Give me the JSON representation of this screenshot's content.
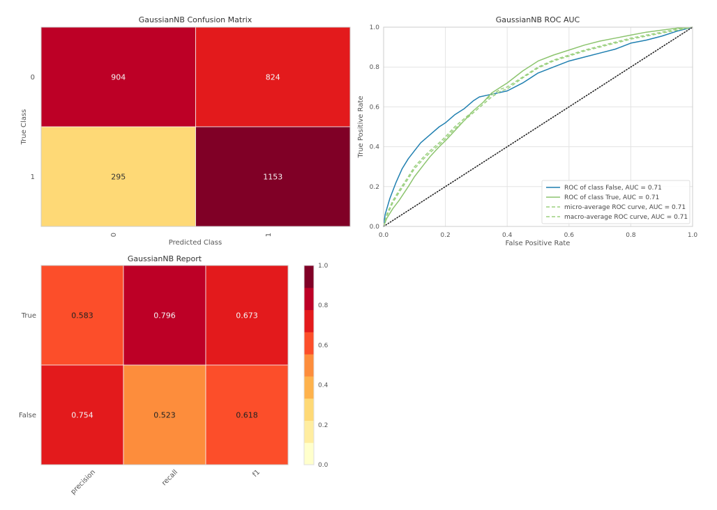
{
  "chart_data": [
    {
      "type": "heatmap",
      "id": "confusion",
      "title": "GaussianNB Confusion Matrix",
      "xlabel": "Predicted Class",
      "ylabel": "True Class",
      "x_categories": [
        "0",
        "1"
      ],
      "y_categories": [
        "0",
        "1"
      ],
      "values": [
        [
          904,
          824
        ],
        [
          295,
          1153
        ]
      ],
      "cell_colors": [
        [
          "#bd0026",
          "#e31a1c"
        ],
        [
          "#fed976",
          "#800026"
        ]
      ],
      "text_colors": [
        [
          "#f5f5f5",
          "#f5f5f5"
        ],
        [
          "#333333",
          "#f5f5f5"
        ]
      ]
    },
    {
      "type": "line",
      "id": "roc",
      "title": "GaussianNB ROC AUC",
      "xlabel": "False Positive Rate",
      "ylabel": "True Positive Rate",
      "xlim": [
        0,
        1
      ],
      "ylim": [
        0,
        1
      ],
      "xticks": [
        "0.0",
        "0.2",
        "0.4",
        "0.6",
        "0.8",
        "1.0"
      ],
      "yticks": [
        "0.0",
        "0.2",
        "0.4",
        "0.6",
        "0.8",
        "1.0"
      ],
      "grid": true,
      "legend_position": "bottom-right",
      "series": [
        {
          "name": "ROC of class False, AUC = 0.71",
          "color": "#1f7fb0",
          "style": "solid",
          "x": [
            0,
            0.005,
            0.02,
            0.04,
            0.06,
            0.08,
            0.1,
            0.12,
            0.15,
            0.18,
            0.2,
            0.23,
            0.26,
            0.29,
            0.31,
            0.34,
            0.37,
            0.4,
            0.45,
            0.5,
            0.55,
            0.6,
            0.65,
            0.7,
            0.75,
            0.8,
            0.85,
            0.9,
            0.95,
            1.0
          ],
          "y": [
            0,
            0.06,
            0.14,
            0.22,
            0.29,
            0.34,
            0.38,
            0.42,
            0.46,
            0.5,
            0.52,
            0.56,
            0.59,
            0.63,
            0.65,
            0.66,
            0.67,
            0.68,
            0.72,
            0.77,
            0.8,
            0.83,
            0.85,
            0.87,
            0.89,
            0.92,
            0.935,
            0.955,
            0.98,
            1.0
          ]
        },
        {
          "name": "ROC of class True, AUC = 0.71",
          "color": "#8cc46e",
          "style": "solid",
          "x": [
            0,
            0.01,
            0.03,
            0.05,
            0.08,
            0.1,
            0.13,
            0.15,
            0.18,
            0.2,
            0.23,
            0.26,
            0.29,
            0.32,
            0.35,
            0.38,
            0.4,
            0.45,
            0.5,
            0.55,
            0.6,
            0.65,
            0.7,
            0.75,
            0.8,
            0.85,
            0.9,
            0.95,
            1.0
          ],
          "y": [
            0,
            0.04,
            0.09,
            0.13,
            0.2,
            0.25,
            0.31,
            0.35,
            0.4,
            0.43,
            0.48,
            0.53,
            0.58,
            0.62,
            0.67,
            0.7,
            0.72,
            0.78,
            0.83,
            0.86,
            0.885,
            0.91,
            0.93,
            0.945,
            0.96,
            0.975,
            0.985,
            0.995,
            1.0
          ]
        },
        {
          "name": "micro-average ROC curve, AUC = 0.71",
          "color": "#9bd07f",
          "style": "dashed",
          "x": [
            0,
            0.01,
            0.03,
            0.05,
            0.08,
            0.1,
            0.13,
            0.15,
            0.18,
            0.2,
            0.23,
            0.26,
            0.29,
            0.32,
            0.35,
            0.38,
            0.4,
            0.45,
            0.5,
            0.55,
            0.6,
            0.65,
            0.7,
            0.75,
            0.8,
            0.85,
            0.9,
            0.95,
            1.0
          ],
          "y": [
            0,
            0.06,
            0.13,
            0.18,
            0.25,
            0.3,
            0.35,
            0.38,
            0.42,
            0.45,
            0.5,
            0.54,
            0.58,
            0.62,
            0.66,
            0.69,
            0.7,
            0.75,
            0.8,
            0.835,
            0.86,
            0.885,
            0.905,
            0.925,
            0.945,
            0.96,
            0.975,
            0.99,
            1.0
          ]
        },
        {
          "name": "macro-average ROC curve, AUC = 0.71",
          "color": "#9bd07f",
          "style": "dashed",
          "x": [
            0,
            0.01,
            0.03,
            0.05,
            0.08,
            0.1,
            0.13,
            0.15,
            0.18,
            0.2,
            0.23,
            0.26,
            0.29,
            0.32,
            0.35,
            0.38,
            0.4,
            0.45,
            0.5,
            0.55,
            0.6,
            0.65,
            0.7,
            0.75,
            0.8,
            0.85,
            0.9,
            0.95,
            1.0
          ],
          "y": [
            0,
            0.05,
            0.12,
            0.17,
            0.24,
            0.29,
            0.34,
            0.37,
            0.41,
            0.44,
            0.49,
            0.53,
            0.57,
            0.61,
            0.65,
            0.68,
            0.69,
            0.745,
            0.795,
            0.83,
            0.855,
            0.88,
            0.9,
            0.92,
            0.94,
            0.955,
            0.97,
            0.985,
            1.0
          ]
        },
        {
          "name": "chance",
          "color": "#222222",
          "style": "dotted",
          "x": [
            0,
            1
          ],
          "y": [
            0,
            1
          ]
        }
      ]
    },
    {
      "type": "heatmap",
      "id": "report",
      "title": "GaussianNB Report",
      "x_categories": [
        "precision",
        "recall",
        "f1"
      ],
      "y_categories": [
        "True",
        "False"
      ],
      "values": [
        [
          0.583,
          0.796,
          0.673
        ],
        [
          0.754,
          0.523,
          0.618
        ]
      ],
      "value_labels": [
        [
          "0.583",
          "0.796",
          "0.673"
        ],
        [
          "0.754",
          "0.523",
          "0.618"
        ]
      ],
      "cell_colors": [
        [
          "#fc4e2a",
          "#bd0026",
          "#e31a1c"
        ],
        [
          "#e31a1c",
          "#fd8d3c",
          "#fc4e2a"
        ]
      ],
      "text_colors": [
        [
          "#222222",
          "#f5f5f5",
          "#f5f5f5"
        ],
        [
          "#f5f5f5",
          "#222222",
          "#222222"
        ]
      ],
      "colorbar": {
        "range": [
          0,
          1
        ],
        "ticks": [
          "0.0",
          "0.2",
          "0.4",
          "0.6",
          "0.8",
          "1.0"
        ],
        "bands": [
          "#ffffcc",
          "#ffeda0",
          "#fed976",
          "#feb24c",
          "#fd8d3c",
          "#fc4e2a",
          "#e31a1c",
          "#bd0026",
          "#800026"
        ]
      }
    }
  ]
}
